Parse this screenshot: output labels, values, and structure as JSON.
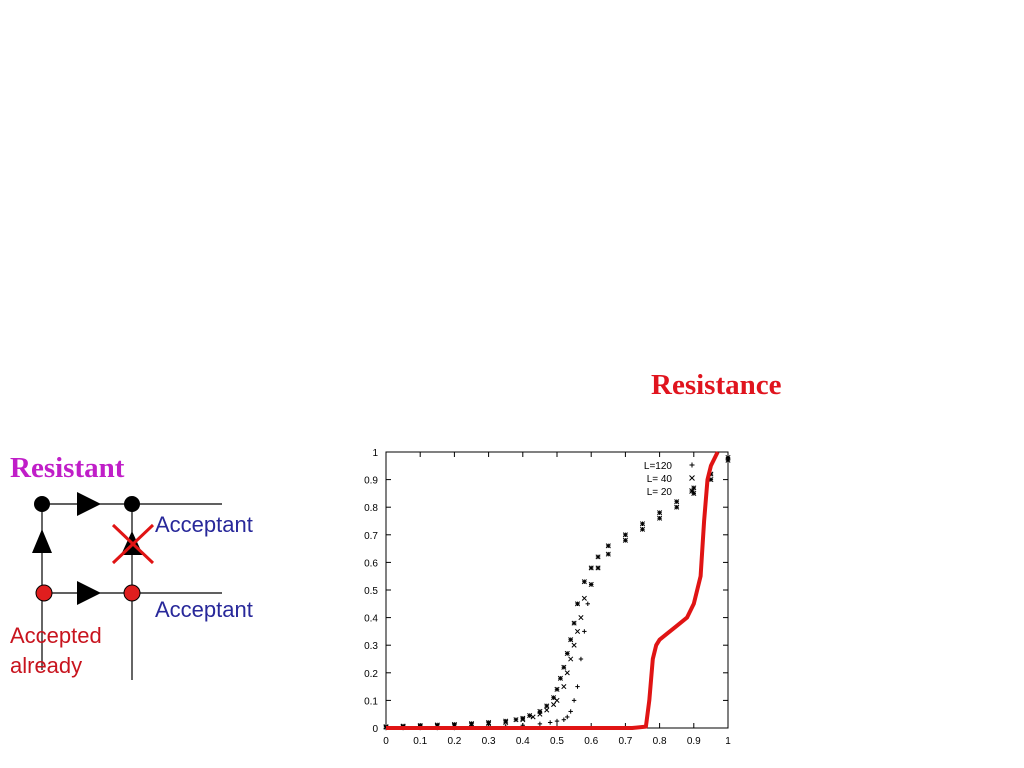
{
  "slide": {
    "chart_title": "Resistance",
    "resistant_label": "Resistant",
    "acceptant_top": "Acceptant",
    "acceptant_bottom": "Acceptant",
    "accepted_already_line1": "Accepted",
    "accepted_already_line2": "already"
  },
  "colors": {
    "title_red": "#e0141e",
    "resistant_magenta": "#c01ec8",
    "acceptant_blue": "#28289a",
    "accepted_red": "#c8141e",
    "node_red": "#e01e1e",
    "curve_red": "#e01414"
  },
  "chart_data": {
    "type": "scatter",
    "xlim": [
      0,
      1
    ],
    "ylim": [
      0,
      1
    ],
    "x_ticks": [
      "0",
      "0.1",
      "0.2",
      "0.3",
      "0.4",
      "0.5",
      "0.6",
      "0.7",
      "0.8",
      "0.9",
      "1"
    ],
    "y_ticks": [
      "0",
      "0.1",
      "0.2",
      "0.3",
      "0.4",
      "0.5",
      "0.6",
      "0.7",
      "0.8",
      "0.9",
      "1"
    ],
    "legend": {
      "placement": "top-right",
      "entries": [
        {
          "label": "L=120",
          "marker": "+"
        },
        {
          "label": "L= 40",
          "marker": "x"
        },
        {
          "label": "L= 20",
          "marker": "*"
        }
      ]
    },
    "series": [
      {
        "name": "L=120",
        "marker": "+",
        "x": [
          0,
          0.05,
          0.1,
          0.15,
          0.2,
          0.25,
          0.3,
          0.35,
          0.4,
          0.45,
          0.48,
          0.5,
          0.52,
          0.53,
          0.54,
          0.55,
          0.56,
          0.57,
          0.58,
          0.59,
          0.6,
          0.62,
          0.65,
          0.7,
          0.75,
          0.8,
          0.85,
          0.9,
          0.95,
          1.0
        ],
        "y": [
          0,
          0,
          0,
          0,
          0,
          0.002,
          0.004,
          0.006,
          0.01,
          0.015,
          0.02,
          0.025,
          0.03,
          0.04,
          0.06,
          0.1,
          0.15,
          0.25,
          0.35,
          0.45,
          0.52,
          0.58,
          0.63,
          0.68,
          0.72,
          0.76,
          0.8,
          0.85,
          0.9,
          0.97
        ]
      },
      {
        "name": "L= 40",
        "marker": "x",
        "x": [
          0,
          0.05,
          0.1,
          0.15,
          0.2,
          0.25,
          0.3,
          0.35,
          0.4,
          0.43,
          0.45,
          0.47,
          0.49,
          0.5,
          0.52,
          0.53,
          0.54,
          0.55,
          0.56,
          0.57,
          0.58,
          0.6,
          0.62,
          0.65,
          0.7,
          0.75,
          0.8,
          0.85,
          0.9,
          0.95,
          1.0
        ],
        "y": [
          0.003,
          0.004,
          0.006,
          0.008,
          0.01,
          0.013,
          0.016,
          0.02,
          0.03,
          0.04,
          0.05,
          0.065,
          0.085,
          0.1,
          0.15,
          0.2,
          0.25,
          0.3,
          0.35,
          0.4,
          0.47,
          0.52,
          0.58,
          0.63,
          0.68,
          0.72,
          0.76,
          0.8,
          0.85,
          0.9,
          0.97
        ]
      },
      {
        "name": "L= 20",
        "marker": "*",
        "x": [
          0,
          0.05,
          0.1,
          0.15,
          0.2,
          0.25,
          0.3,
          0.35,
          0.38,
          0.4,
          0.42,
          0.45,
          0.47,
          0.49,
          0.5,
          0.51,
          0.52,
          0.53,
          0.54,
          0.55,
          0.56,
          0.58,
          0.6,
          0.62,
          0.65,
          0.7,
          0.75,
          0.8,
          0.85,
          0.9,
          0.95,
          1.0
        ],
        "y": [
          0.005,
          0.007,
          0.009,
          0.011,
          0.013,
          0.016,
          0.02,
          0.025,
          0.03,
          0.035,
          0.045,
          0.06,
          0.08,
          0.11,
          0.14,
          0.18,
          0.22,
          0.27,
          0.32,
          0.38,
          0.45,
          0.53,
          0.58,
          0.62,
          0.66,
          0.7,
          0.74,
          0.78,
          0.82,
          0.87,
          0.92,
          0.98
        ]
      },
      {
        "name": "",
        "type": "line",
        "color": "#e01414",
        "x": [
          0,
          0.3,
          0.6,
          0.72,
          0.76,
          0.77,
          0.78,
          0.79,
          0.8,
          0.82,
          0.85,
          0.88,
          0.9,
          0.92,
          0.93,
          0.94,
          0.95,
          0.97
        ],
        "y": [
          0,
          0,
          0,
          0,
          0.005,
          0.1,
          0.25,
          0.3,
          0.32,
          0.34,
          0.37,
          0.4,
          0.45,
          0.55,
          0.75,
          0.9,
          0.95,
          1.0
        ]
      }
    ]
  }
}
